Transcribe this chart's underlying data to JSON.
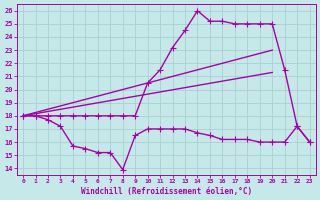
{
  "xlabel": "Windchill (Refroidissement éolien,°C)",
  "xlim": [
    -0.5,
    23.5
  ],
  "ylim": [
    13.5,
    26.5
  ],
  "xticks": [
    0,
    1,
    2,
    3,
    4,
    5,
    6,
    7,
    8,
    9,
    10,
    11,
    12,
    13,
    14,
    15,
    16,
    17,
    18,
    19,
    20,
    21,
    22,
    23
  ],
  "yticks": [
    14,
    15,
    16,
    17,
    18,
    19,
    20,
    21,
    22,
    23,
    24,
    25,
    26
  ],
  "background_color": "#c5e8e8",
  "grid_color": "#aacfcf",
  "line_color": "#aa00aa",
  "line_width": 1.0,
  "marker": "+",
  "marker_size": 4,
  "lines": [
    {
      "x": [
        0,
        1,
        2,
        3,
        4,
        5,
        6,
        7,
        8,
        9,
        10,
        11,
        12,
        13,
        14,
        15,
        16,
        17,
        18,
        19,
        20,
        21,
        22,
        23
      ],
      "y": [
        18.0,
        18.0,
        17.7,
        17.2,
        15.7,
        15.5,
        15.2,
        15.2,
        13.9,
        16.5,
        17.0,
        17.0,
        17.0,
        17.0,
        16.7,
        16.5,
        16.2,
        16.2,
        16.2,
        16.0,
        16.0,
        16.0,
        17.2,
        16.0
      ],
      "has_markers": true
    },
    {
      "x": [
        0,
        1,
        2,
        3,
        4,
        5,
        6,
        7,
        8,
        9,
        10,
        11,
        12,
        13,
        14,
        15,
        16,
        17,
        18,
        19,
        20,
        21,
        22,
        23
      ],
      "y": [
        18.0,
        18.0,
        18.0,
        18.0,
        18.0,
        18.0,
        18.0,
        18.0,
        18.0,
        18.0,
        20.5,
        21.5,
        23.2,
        24.5,
        26.0,
        25.2,
        25.2,
        25.0,
        25.0,
        25.0,
        25.0,
        21.5,
        17.2,
        16.0
      ],
      "has_markers": true
    },
    {
      "x": [
        0,
        20
      ],
      "y": [
        18.0,
        23.0
      ],
      "has_markers": false
    },
    {
      "x": [
        0,
        20
      ],
      "y": [
        18.0,
        21.3
      ],
      "has_markers": false
    }
  ]
}
